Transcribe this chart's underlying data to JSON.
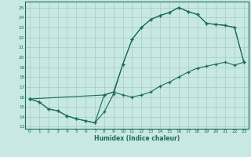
{
  "xlabel": "Humidex (Indice chaleur)",
  "xlim": [
    -0.5,
    23.5
  ],
  "ylim": [
    12.8,
    25.6
  ],
  "xticks": [
    0,
    1,
    2,
    3,
    4,
    5,
    6,
    7,
    8,
    9,
    10,
    11,
    12,
    13,
    14,
    15,
    16,
    17,
    18,
    19,
    20,
    21,
    22,
    23
  ],
  "yticks": [
    13,
    14,
    15,
    16,
    17,
    18,
    19,
    20,
    21,
    22,
    23,
    24,
    25
  ],
  "bg_color": "#c8e8e4",
  "line_color": "#1a6b5a",
  "grid_color": "#a0ccc8",
  "curve1_x": [
    0,
    1,
    2,
    3,
    4,
    5,
    6,
    7,
    8,
    9,
    10,
    11,
    12,
    13,
    14,
    15,
    16,
    17,
    18,
    19,
    20,
    21,
    22,
    23
  ],
  "curve1_y": [
    15.8,
    15.5,
    14.8,
    14.6,
    14.1,
    13.8,
    13.6,
    13.4,
    14.5,
    16.3,
    19.3,
    21.8,
    23.0,
    23.8,
    24.2,
    24.5,
    25.0,
    24.6,
    24.3,
    23.4,
    23.3,
    23.2,
    23.0,
    19.5
  ],
  "curve2_x": [
    0,
    1,
    2,
    3,
    4,
    5,
    6,
    7,
    8,
    9,
    10,
    11,
    12,
    13,
    14,
    15,
    16,
    17,
    18,
    19,
    20,
    21,
    22,
    23
  ],
  "curve2_y": [
    15.8,
    15.5,
    14.8,
    14.6,
    14.1,
    13.8,
    13.6,
    13.4,
    16.2,
    16.5,
    16.2,
    16.0,
    16.2,
    16.5,
    17.1,
    17.5,
    18.0,
    18.5,
    18.9,
    19.1,
    19.3,
    19.5,
    19.2,
    19.5
  ],
  "curve3_x": [
    0,
    8,
    9,
    10,
    11,
    12,
    13,
    14,
    15,
    16,
    17,
    18,
    19,
    20,
    21,
    22,
    23
  ],
  "curve3_y": [
    15.8,
    16.2,
    16.5,
    19.3,
    21.8,
    23.0,
    23.8,
    24.2,
    24.5,
    25.0,
    24.6,
    24.3,
    23.4,
    23.3,
    23.2,
    23.0,
    19.5
  ]
}
